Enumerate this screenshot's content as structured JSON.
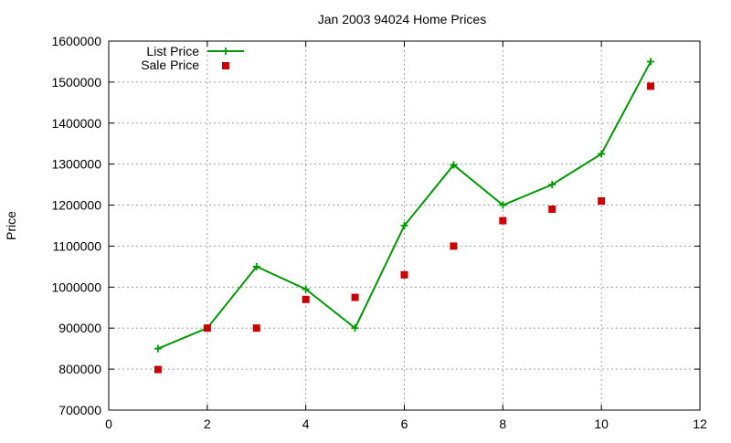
{
  "chart_data": {
    "type": "line",
    "title": "Jan 2003 94024 Home Prices",
    "xlabel": "",
    "ylabel": "Price",
    "xlim": [
      0,
      12
    ],
    "ylim": [
      700000,
      1600000
    ],
    "x_ticks": [
      0,
      2,
      4,
      6,
      8,
      10,
      12
    ],
    "y_ticks": [
      700000,
      800000,
      900000,
      1000000,
      1100000,
      1200000,
      1300000,
      1400000,
      1500000,
      1600000
    ],
    "grid": true,
    "legend_position": "top-left",
    "series": [
      {
        "name": "List Price",
        "style": "linespoints",
        "marker": "plus",
        "color": "#009900",
        "x": [
          1,
          2,
          3,
          4,
          5,
          6,
          7,
          8,
          9,
          10,
          11
        ],
        "y": [
          850000,
          900000,
          1050000,
          995000,
          900000,
          1150000,
          1298000,
          1200000,
          1250000,
          1325000,
          1550000
        ]
      },
      {
        "name": "Sale Price",
        "style": "points",
        "marker": "square",
        "color": "#cc0000",
        "x": [
          1,
          2,
          3,
          4,
          5,
          6,
          7,
          8,
          9,
          10,
          11
        ],
        "y": [
          799000,
          900000,
          900000,
          970000,
          975000,
          1030000,
          1100000,
          1162000,
          1190000,
          1210000,
          1490000
        ]
      }
    ]
  }
}
